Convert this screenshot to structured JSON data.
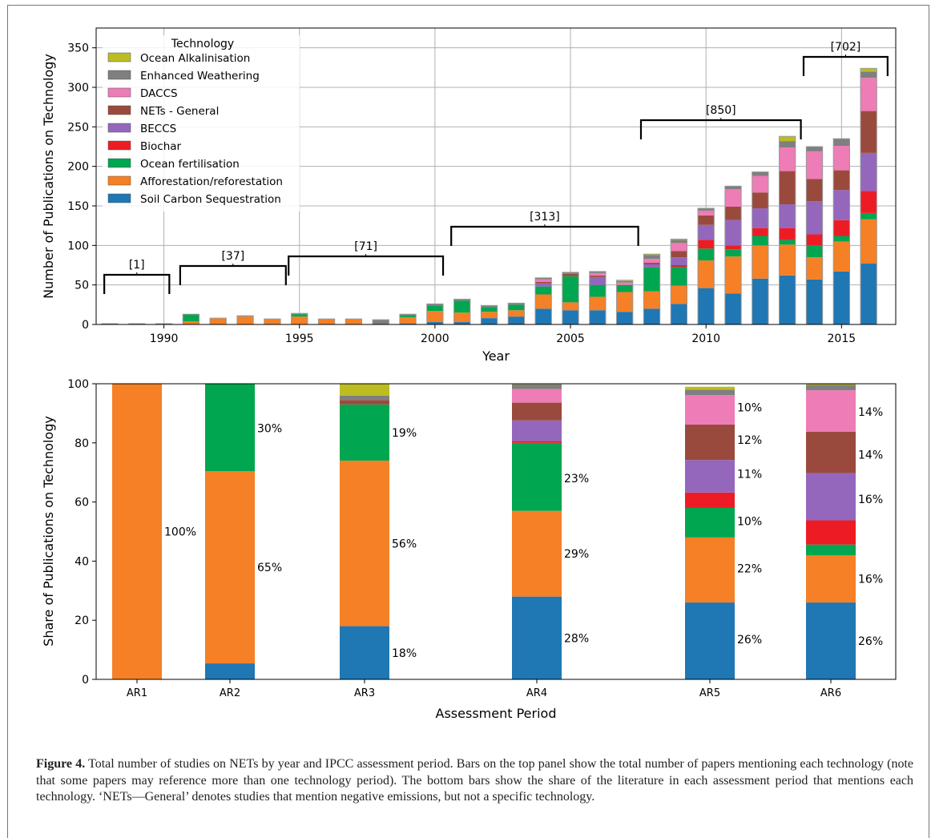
{
  "colors": {
    "Soil Carbon Sequestration": "#1f77b4",
    "Afforestation/reforestation": "#f58025",
    "Ocean fertilisation": "#00a650",
    "Biochar": "#ed1c24",
    "BECCS": "#9467bd",
    "NETs - General": "#9a4a3c",
    "DACCS": "#ee7cb6",
    "Enhanced Weathering": "#7f7f7f",
    "Ocean Alkalinisation": "#bcbd22"
  },
  "top": {
    "ylabel": "Number of Publications on Technology",
    "xlabel": "Year",
    "legend_title": "Technology",
    "legend": [
      "Ocean Alkalinisation",
      "Enhanced Weathering",
      "DACCS",
      "NETs - General",
      "BECCS",
      "Biochar",
      "Ocean fertilisation",
      "Afforestation/reforestation",
      "Soil Carbon Sequestration"
    ],
    "xticks": [
      "1990",
      "1995",
      "2000",
      "2005",
      "2010",
      "2015"
    ],
    "yticks": [
      "0",
      "50",
      "100",
      "150",
      "200",
      "250",
      "300",
      "350"
    ],
    "brackets": [
      "[1]",
      "[37]",
      "[71]",
      "[313]",
      "[850]",
      "[702]"
    ]
  },
  "bottom": {
    "ylabel": "Share of Publications on Technology",
    "xlabel": "Assessment Period",
    "yticks": [
      "0",
      "20",
      "40",
      "60",
      "80",
      "100"
    ]
  },
  "caption": {
    "label": "Figure 4.",
    "text": " Total number of studies on NETs by year and IPCC assessment period. Bars on the top panel show the total number of papers mentioning each technology (note that some papers may reference more than one technology period). The bottom bars show the share of the literature in each assessment period that mentions each technology. ‘NETs—General’ denotes studies that mention negative emissions, but not a specific technology."
  },
  "chart_data": [
    {
      "type": "bar",
      "stacked": true,
      "title": "",
      "xlabel": "Year",
      "ylabel": "Number of Publications on Technology",
      "xlim": [
        1987.5,
        2017
      ],
      "ylim": [
        0,
        375
      ],
      "grid": true,
      "legend_title": "Technology",
      "legend_position": "top-left",
      "categories": [
        1988,
        1989,
        1990,
        1991,
        1992,
        1993,
        1994,
        1995,
        1996,
        1997,
        1998,
        1999,
        2000,
        2001,
        2002,
        2003,
        2004,
        2005,
        2006,
        2007,
        2008,
        2009,
        2010,
        2011,
        2012,
        2013,
        2014,
        2015,
        2016
      ],
      "series": [
        {
          "name": "Soil Carbon Sequestration",
          "values": [
            0,
            0,
            0,
            0,
            0,
            0,
            0,
            0,
            0,
            0,
            0,
            1,
            3,
            3,
            8,
            10,
            20,
            18,
            18,
            16,
            20,
            26,
            46,
            39,
            58,
            62,
            57,
            67,
            77
          ]
        },
        {
          "name": "Afforestation/reforestation",
          "values": [
            1,
            1,
            1,
            4,
            8,
            10,
            7,
            10,
            7,
            7,
            0,
            8,
            14,
            12,
            8,
            8,
            18,
            10,
            17,
            25,
            22,
            23,
            35,
            47,
            42,
            39,
            28,
            38,
            56
          ]
        },
        {
          "name": "Ocean fertilisation",
          "values": [
            0,
            0,
            0,
            9,
            0,
            0,
            0,
            3,
            0,
            0,
            0,
            3,
            7,
            15,
            6,
            7,
            10,
            33,
            15,
            9,
            30,
            24,
            15,
            9,
            12,
            6,
            15,
            7,
            8
          ]
        },
        {
          "name": "Biochar",
          "values": [
            0,
            0,
            0,
            0,
            0,
            0,
            0,
            0,
            0,
            0,
            0,
            0,
            0,
            0,
            0,
            0,
            0,
            0,
            0,
            0,
            0,
            2,
            11,
            5,
            10,
            15,
            14,
            20,
            28
          ]
        },
        {
          "name": "BECCS",
          "values": [
            0,
            0,
            0,
            0,
            0,
            0,
            0,
            0,
            0,
            0,
            0,
            0,
            0,
            0,
            0,
            0,
            4,
            0,
            10,
            0,
            4,
            10,
            19,
            32,
            25,
            30,
            42,
            38,
            48
          ]
        },
        {
          "name": "NETs - General",
          "values": [
            0,
            0,
            0,
            0,
            0,
            0,
            0,
            0,
            0,
            0,
            0,
            0,
            0,
            0,
            0,
            0,
            2,
            3,
            2,
            0,
            2,
            8,
            12,
            17,
            20,
            42,
            28,
            25,
            53
          ]
        },
        {
          "name": "DACCS",
          "values": [
            0,
            0,
            0,
            0,
            0,
            0,
            0,
            0,
            0,
            0,
            0,
            0,
            0,
            0,
            0,
            0,
            3,
            0,
            3,
            3,
            5,
            10,
            6,
            22,
            21,
            30,
            35,
            31,
            42
          ]
        },
        {
          "name": "Enhanced Weathering",
          "values": [
            0,
            0,
            0,
            0,
            0,
            1,
            0,
            1,
            0,
            0,
            6,
            1,
            2,
            2,
            2,
            2,
            2,
            2,
            2,
            2,
            5,
            4,
            3,
            4,
            5,
            8,
            6,
            9,
            8
          ]
        },
        {
          "name": "Ocean Alkalinisation",
          "values": [
            0,
            0,
            0,
            0,
            0,
            0,
            0,
            0,
            0,
            0,
            0,
            0,
            0,
            0,
            0,
            0,
            0,
            0,
            0,
            1,
            1,
            1,
            0,
            0,
            0,
            6,
            0,
            0,
            4
          ]
        }
      ],
      "annotations": [
        {
          "text": "[1]",
          "from": 1987.8,
          "to": 1990.2
        },
        {
          "text": "[37]",
          "from": 1990.6,
          "to": 1994.5
        },
        {
          "text": "[71]",
          "from": 1994.6,
          "to": 2000.3
        },
        {
          "text": "[313]",
          "from": 2000.6,
          "to": 2007.5
        },
        {
          "text": "[850]",
          "from": 2007.6,
          "to": 2013.5
        },
        {
          "text": "[702]",
          "from": 2013.6,
          "to": 2016.7
        }
      ]
    },
    {
      "type": "bar",
      "stacked": true,
      "title": "",
      "xlabel": "Assessment Period",
      "ylabel": "Share of Publications on Technology",
      "ylim": [
        0,
        100
      ],
      "grid": false,
      "categories": [
        "AR1",
        "AR2",
        "AR3",
        "AR4",
        "AR5",
        "AR6"
      ],
      "series": [
        {
          "name": "Soil Carbon Sequestration",
          "values": [
            0,
            5.4,
            18,
            28,
            26,
            26
          ]
        },
        {
          "name": "Afforestation/reforestation",
          "values": [
            100,
            65,
            56,
            29,
            22,
            16
          ]
        },
        {
          "name": "Ocean fertilisation",
          "values": [
            0,
            29.6,
            19,
            23,
            10,
            3.6
          ]
        },
        {
          "name": "Biochar",
          "values": [
            0,
            0,
            0,
            0.6,
            5.2,
            8.2
          ]
        },
        {
          "name": "BECCS",
          "values": [
            0,
            0,
            0,
            7,
            11,
            16
          ]
        },
        {
          "name": "NETs - General",
          "values": [
            0,
            0,
            1.5,
            6,
            12,
            14
          ]
        },
        {
          "name": "DACCS",
          "values": [
            0,
            0,
            0,
            4.6,
            10,
            14
          ]
        },
        {
          "name": "Enhanced Weathering",
          "values": [
            0,
            0,
            1.5,
            1.6,
            1.8,
            1.8
          ]
        },
        {
          "name": "Ocean Alkalinisation",
          "values": [
            0,
            0,
            4,
            0.9,
            1,
            0.4
          ]
        }
      ],
      "labels": [
        [
          {
            "text": "100%",
            "y": 50
          }
        ],
        [
          {
            "text": "65%",
            "y": 38
          },
          {
            "text": "30%",
            "y": 85
          }
        ],
        [
          {
            "text": "18%",
            "y": 9
          },
          {
            "text": "56%",
            "y": 46
          },
          {
            "text": "19%",
            "y": 83.5
          }
        ],
        [
          {
            "text": "28%",
            "y": 14
          },
          {
            "text": "29%",
            "y": 42.5
          },
          {
            "text": "23%",
            "y": 68
          }
        ],
        [
          {
            "text": "26%",
            "y": 13.5
          },
          {
            "text": "22%",
            "y": 37.5
          },
          {
            "text": "10%",
            "y": 53.5
          },
          {
            "text": "11%",
            "y": 69.5
          },
          {
            "text": "12%",
            "y": 81
          },
          {
            "text": "10%",
            "y": 92
          }
        ],
        [
          {
            "text": "26%",
            "y": 13
          },
          {
            "text": "16%",
            "y": 34
          },
          {
            "text": "16%",
            "y": 61
          },
          {
            "text": "14%",
            "y": 76
          },
          {
            "text": "14%",
            "y": 90.5
          }
        ]
      ]
    }
  ]
}
